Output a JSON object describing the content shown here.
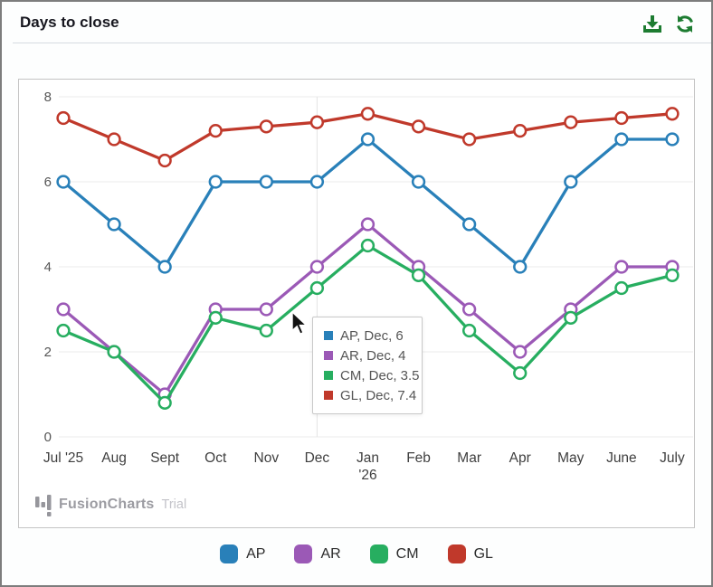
{
  "header": {
    "title": "Days to close",
    "icon_color": "#1d7c31",
    "actions": [
      "download",
      "refresh"
    ]
  },
  "watermark": {
    "brand": "FusionCharts",
    "suffix": "Trial"
  },
  "tooltip": {
    "hover_category": "Dec",
    "rows": [
      {
        "series": "AP",
        "text": "AP, Dec, 6",
        "color": "#2980b9"
      },
      {
        "series": "AR",
        "text": "AR, Dec, 4",
        "color": "#9b59b6"
      },
      {
        "series": "CM",
        "text": "CM, Dec, 3.5",
        "color": "#27ae60"
      },
      {
        "series": "GL",
        "text": "GL, Dec, 7.4",
        "color": "#c0392b"
      }
    ]
  },
  "legend": {
    "items": [
      {
        "label": "AP",
        "color": "#2980b9"
      },
      {
        "label": "AR",
        "color": "#9b59b6"
      },
      {
        "label": "CM",
        "color": "#27ae60"
      },
      {
        "label": "GL",
        "color": "#c0392b"
      }
    ]
  },
  "chart_data": {
    "type": "line",
    "title": "Days to close",
    "categories": [
      "Jul '25",
      "Aug",
      "Sept",
      "Oct",
      "Nov",
      "Dec",
      "Jan '26",
      "Feb",
      "Mar",
      "Apr",
      "May",
      "June",
      "July"
    ],
    "wrap_categories": [
      "Jan '26"
    ],
    "series": [
      {
        "name": "AP",
        "color": "#2980b9",
        "values": [
          6,
          5,
          4,
          6,
          6,
          6,
          7,
          6,
          5,
          4,
          6,
          7,
          7
        ]
      },
      {
        "name": "AR",
        "color": "#9b59b6",
        "values": [
          3,
          2,
          1,
          3,
          3,
          4,
          5,
          4,
          3,
          2,
          3,
          4,
          4
        ]
      },
      {
        "name": "CM",
        "color": "#27ae60",
        "values": [
          2.5,
          2,
          0.8,
          2.8,
          2.5,
          3.5,
          4.5,
          3.8,
          2.5,
          1.5,
          2.8,
          3.5,
          3.8
        ]
      },
      {
        "name": "GL",
        "color": "#c0392b",
        "values": [
          7.5,
          7,
          6.5,
          7.2,
          7.3,
          7.4,
          7.6,
          7.3,
          7,
          7.2,
          7.4,
          7.5,
          7.6
        ]
      }
    ],
    "xlabel": "",
    "ylabel": "",
    "ylim": [
      0,
      8
    ],
    "yticks": [
      0,
      2,
      4,
      6,
      8
    ],
    "grid": true,
    "legend_position": "bottom",
    "hover_category": "Dec",
    "hover_crosshair": true
  }
}
